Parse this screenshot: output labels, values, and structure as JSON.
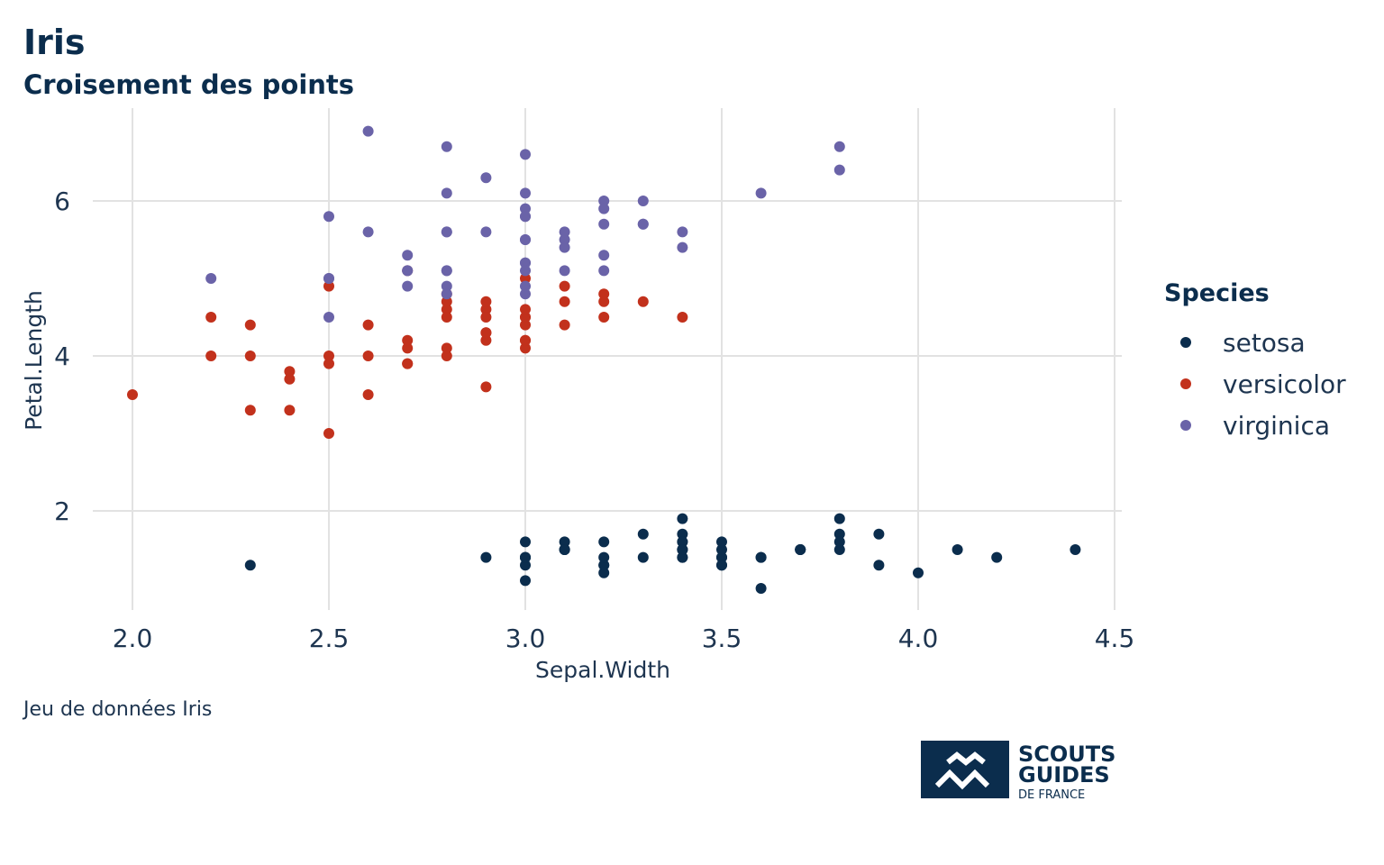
{
  "chart_data": {
    "type": "scatter",
    "title": "Iris",
    "subtitle": "Croisement des points",
    "xlabel": "Sepal.Width",
    "ylabel": "Petal.Length",
    "caption": "Jeu de données Iris",
    "xlim": [
      1.9,
      4.5
    ],
    "ylim": [
      0.8,
      7.1
    ],
    "xticks": [
      2.0,
      2.5,
      3.0,
      3.5,
      4.0,
      4.5
    ],
    "xtick_labels": [
      "2.0",
      "2.5",
      "3.0",
      "3.5",
      "4.0",
      "4.5"
    ],
    "yticks": [
      2,
      4,
      6
    ],
    "ytick_labels": [
      "2",
      "4",
      "6"
    ],
    "grid": true,
    "legend": {
      "title": "Species",
      "position": "right"
    },
    "series": [
      {
        "name": "setosa",
        "color": "#0b2d4d",
        "points": [
          [
            3.5,
            1.4
          ],
          [
            3.0,
            1.4
          ],
          [
            3.2,
            1.3
          ],
          [
            3.1,
            1.5
          ],
          [
            3.6,
            1.4
          ],
          [
            3.9,
            1.7
          ],
          [
            3.4,
            1.4
          ],
          [
            3.4,
            1.5
          ],
          [
            2.9,
            1.4
          ],
          [
            3.1,
            1.5
          ],
          [
            3.7,
            1.5
          ],
          [
            3.4,
            1.6
          ],
          [
            3.0,
            1.4
          ],
          [
            3.0,
            1.1
          ],
          [
            4.0,
            1.2
          ],
          [
            4.4,
            1.5
          ],
          [
            3.9,
            1.3
          ],
          [
            3.5,
            1.4
          ],
          [
            3.8,
            1.7
          ],
          [
            3.8,
            1.5
          ],
          [
            3.4,
            1.7
          ],
          [
            3.7,
            1.5
          ],
          [
            3.6,
            1.0
          ],
          [
            3.3,
            1.7
          ],
          [
            3.4,
            1.9
          ],
          [
            3.0,
            1.6
          ],
          [
            3.4,
            1.6
          ],
          [
            3.5,
            1.5
          ],
          [
            3.4,
            1.4
          ],
          [
            3.2,
            1.6
          ],
          [
            3.1,
            1.6
          ],
          [
            3.4,
            1.5
          ],
          [
            4.1,
            1.5
          ],
          [
            4.2,
            1.4
          ],
          [
            3.1,
            1.5
          ],
          [
            3.2,
            1.2
          ],
          [
            3.5,
            1.3
          ],
          [
            3.6,
            1.4
          ],
          [
            3.0,
            1.3
          ],
          [
            3.4,
            1.5
          ],
          [
            3.5,
            1.3
          ],
          [
            2.3,
            1.3
          ],
          [
            3.2,
            1.3
          ],
          [
            3.5,
            1.6
          ],
          [
            3.8,
            1.9
          ],
          [
            3.0,
            1.4
          ],
          [
            3.8,
            1.6
          ],
          [
            3.2,
            1.4
          ],
          [
            3.7,
            1.5
          ],
          [
            3.3,
            1.4
          ]
        ]
      },
      {
        "name": "versicolor",
        "color": "#c2311c",
        "points": [
          [
            3.2,
            4.7
          ],
          [
            3.2,
            4.5
          ],
          [
            3.1,
            4.9
          ],
          [
            2.3,
            4.0
          ],
          [
            2.8,
            4.6
          ],
          [
            2.8,
            4.5
          ],
          [
            3.3,
            4.7
          ],
          [
            2.4,
            3.3
          ],
          [
            2.9,
            4.6
          ],
          [
            2.7,
            3.9
          ],
          [
            2.0,
            3.5
          ],
          [
            3.0,
            4.2
          ],
          [
            2.2,
            4.0
          ],
          [
            2.9,
            4.7
          ],
          [
            2.9,
            3.6
          ],
          [
            3.1,
            4.4
          ],
          [
            3.0,
            4.5
          ],
          [
            2.7,
            4.1
          ],
          [
            2.2,
            4.5
          ],
          [
            2.5,
            3.9
          ],
          [
            3.2,
            4.8
          ],
          [
            2.8,
            4.0
          ],
          [
            2.5,
            4.9
          ],
          [
            2.8,
            4.7
          ],
          [
            2.9,
            4.3
          ],
          [
            3.0,
            4.4
          ],
          [
            2.8,
            4.8
          ],
          [
            3.0,
            5.0
          ],
          [
            2.9,
            4.5
          ],
          [
            2.6,
            3.5
          ],
          [
            2.4,
            3.8
          ],
          [
            2.4,
            3.7
          ],
          [
            2.7,
            3.9
          ],
          [
            2.7,
            5.1
          ],
          [
            3.0,
            4.5
          ],
          [
            3.4,
            4.5
          ],
          [
            3.1,
            4.7
          ],
          [
            2.3,
            4.4
          ],
          [
            3.0,
            4.1
          ],
          [
            2.5,
            4.0
          ],
          [
            2.6,
            4.4
          ],
          [
            3.0,
            4.6
          ],
          [
            2.6,
            4.0
          ],
          [
            2.3,
            3.3
          ],
          [
            2.7,
            4.2
          ],
          [
            3.0,
            4.2
          ],
          [
            2.9,
            4.2
          ],
          [
            2.9,
            4.3
          ],
          [
            2.5,
            3.0
          ],
          [
            2.8,
            4.1
          ]
        ]
      },
      {
        "name": "virginica",
        "color": "#6a63a8",
        "points": [
          [
            3.3,
            6.0
          ],
          [
            2.7,
            5.1
          ],
          [
            3.0,
            5.9
          ],
          [
            2.9,
            5.6
          ],
          [
            3.0,
            5.8
          ],
          [
            3.0,
            6.6
          ],
          [
            2.5,
            4.5
          ],
          [
            2.9,
            6.3
          ],
          [
            2.5,
            5.8
          ],
          [
            3.6,
            6.1
          ],
          [
            3.2,
            5.1
          ],
          [
            2.7,
            5.3
          ],
          [
            3.0,
            5.5
          ],
          [
            2.5,
            5.0
          ],
          [
            2.8,
            5.1
          ],
          [
            3.2,
            5.3
          ],
          [
            3.0,
            5.5
          ],
          [
            3.8,
            6.7
          ],
          [
            2.6,
            6.9
          ],
          [
            2.2,
            5.0
          ],
          [
            3.2,
            5.7
          ],
          [
            2.8,
            4.9
          ],
          [
            2.8,
            6.7
          ],
          [
            2.7,
            4.9
          ],
          [
            3.3,
            5.7
          ],
          [
            3.2,
            6.0
          ],
          [
            2.8,
            4.8
          ],
          [
            3.0,
            4.9
          ],
          [
            2.8,
            5.6
          ],
          [
            3.0,
            5.8
          ],
          [
            2.8,
            6.1
          ],
          [
            3.8,
            6.4
          ],
          [
            2.8,
            5.6
          ],
          [
            2.8,
            5.1
          ],
          [
            2.6,
            5.6
          ],
          [
            3.0,
            6.1
          ],
          [
            3.4,
            5.6
          ],
          [
            3.1,
            5.5
          ],
          [
            3.0,
            4.8
          ],
          [
            3.1,
            5.4
          ],
          [
            3.1,
            5.6
          ],
          [
            3.1,
            5.1
          ],
          [
            2.7,
            5.1
          ],
          [
            3.2,
            5.9
          ],
          [
            3.3,
            5.7
          ],
          [
            3.0,
            5.2
          ],
          [
            2.5,
            5.0
          ],
          [
            3.0,
            5.2
          ],
          [
            3.4,
            5.4
          ],
          [
            3.0,
            5.1
          ]
        ]
      }
    ]
  },
  "logo": {
    "line1": "SCOUTS",
    "line2": "GUIDES",
    "line3": "DE FRANCE",
    "color": "#0b2d4d"
  }
}
